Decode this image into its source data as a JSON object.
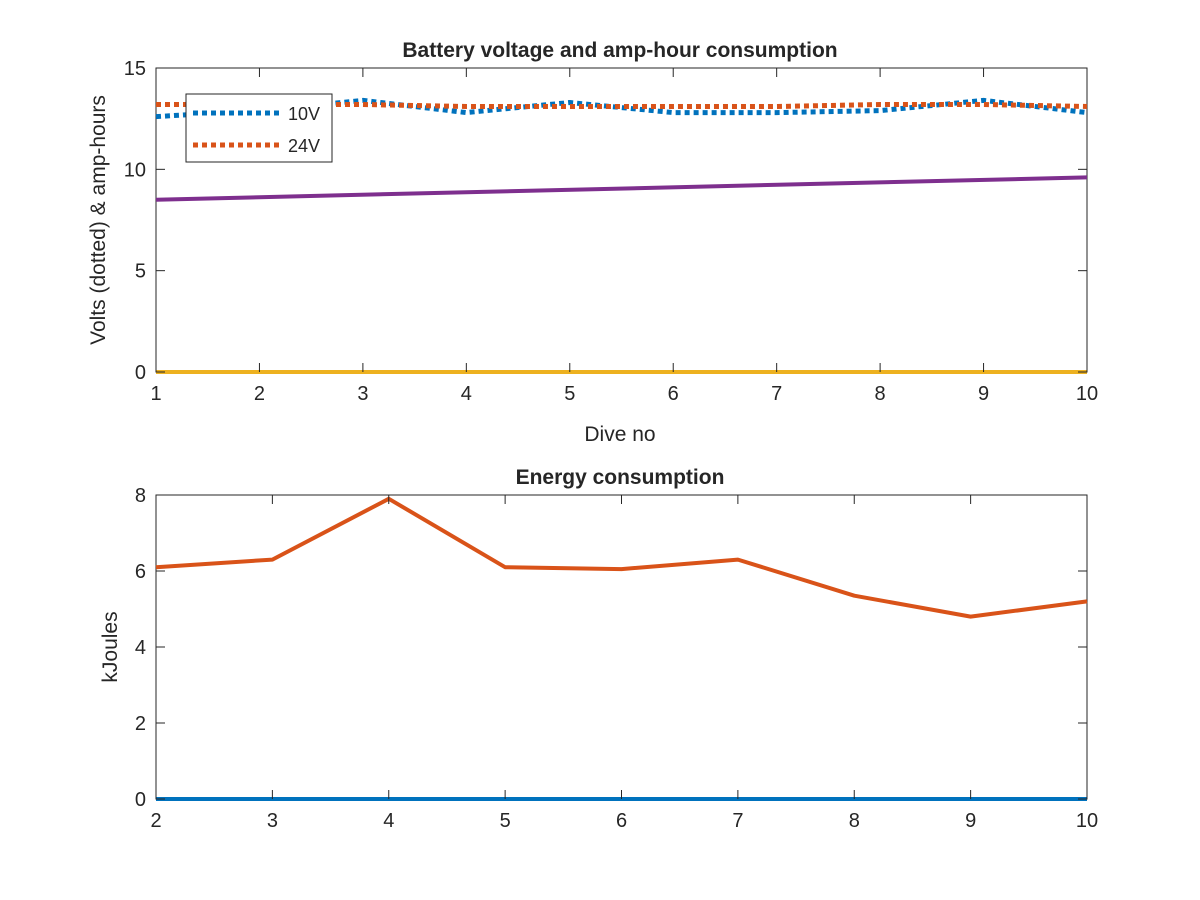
{
  "colors": {
    "blue": "#0072BD",
    "orange": "#D95319",
    "yellow": "#EDB120",
    "purple": "#7E2F8E",
    "axis": "#262626"
  },
  "chart_data": [
    {
      "type": "line",
      "title": "Battery voltage and amp-hour consumption",
      "xlabel": "Dive no",
      "ylabel": "Volts (dotted) & amp-hours",
      "xlim": [
        1,
        10
      ],
      "ylim": [
        0,
        15
      ],
      "xticks": [
        1,
        2,
        3,
        4,
        5,
        6,
        7,
        8,
        9,
        10
      ],
      "yticks": [
        0,
        5,
        10,
        15
      ],
      "grid": false,
      "legend": {
        "placement": "top-left"
      },
      "series": [
        {
          "name": "10V",
          "style": "dotted",
          "color": "blue",
          "x": [
            1,
            2,
            3,
            4,
            5,
            6,
            7,
            8,
            9,
            10
          ],
          "y": [
            12.6,
            12.9,
            13.4,
            12.8,
            13.3,
            12.8,
            12.8,
            12.9,
            13.4,
            12.8
          ]
        },
        {
          "name": "24V",
          "style": "dotted",
          "color": "orange",
          "x": [
            1,
            2,
            3,
            4,
            5,
            6,
            7,
            8,
            9,
            10
          ],
          "y": [
            13.2,
            13.2,
            13.2,
            13.1,
            13.1,
            13.1,
            13.1,
            13.2,
            13.2,
            13.1
          ]
        },
        {
          "style": "solid",
          "color": "purple",
          "x": [
            1,
            10
          ],
          "y": [
            8.5,
            9.6
          ]
        },
        {
          "style": "solid",
          "color": "yellow",
          "x": [
            1,
            10
          ],
          "y": [
            0,
            0
          ]
        }
      ]
    },
    {
      "type": "line",
      "title": "Energy consumption",
      "xlabel": "",
      "ylabel": "kJoules",
      "xlim": [
        2,
        10
      ],
      "ylim": [
        0,
        8
      ],
      "xticks": [
        2,
        3,
        4,
        5,
        6,
        7,
        8,
        9,
        10
      ],
      "yticks": [
        0,
        2,
        4,
        6,
        8
      ],
      "grid": false,
      "series": [
        {
          "style": "solid",
          "color": "orange",
          "x": [
            2,
            3,
            4,
            5,
            6,
            7,
            8,
            9,
            10
          ],
          "y": [
            6.1,
            6.3,
            7.9,
            6.1,
            6.05,
            6.3,
            5.35,
            4.8,
            5.2
          ]
        },
        {
          "style": "solid",
          "color": "blue",
          "x": [
            2,
            10
          ],
          "y": [
            0,
            0
          ]
        }
      ]
    }
  ]
}
